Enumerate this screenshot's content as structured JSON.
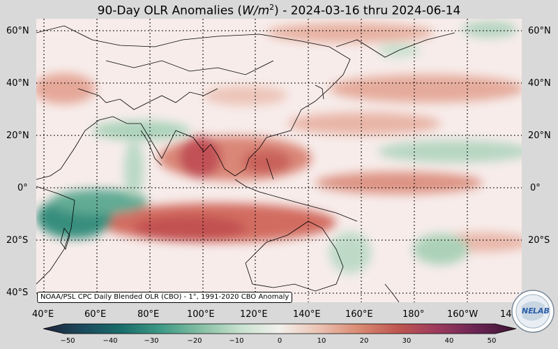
{
  "title": {
    "prefix": "90-Day OLR Anomalies (",
    "units": "W/m",
    "sup": "2",
    "suffix": ") - 2024-03-16 thru 2024-06-14"
  },
  "lat_labels": [
    "60°N",
    "40°N",
    "20°N",
    "0°",
    "20°S",
    "40°S"
  ],
  "lon_labels": [
    "40°E",
    "60°E",
    "80°E",
    "100°E",
    "120°E",
    "140°E",
    "160°E",
    "180°",
    "160°W",
    "14"
  ],
  "credit": "NOAA/PSL CPC Daily Blended OLR (CBO) - 1°, 1991-2020 CBO Anomaly",
  "colorbar": {
    "ticks": [
      "−50",
      "−40",
      "−30",
      "−20",
      "−10",
      "0",
      "10",
      "20",
      "30",
      "40",
      "50"
    ],
    "colors": [
      "#1e2338",
      "#1b4a5c",
      "#1a6e6b",
      "#3f9a86",
      "#86bfa3",
      "#c7e1cf",
      "#f3f0ec",
      "#ebc2b2",
      "#d98b73",
      "#bf5650",
      "#9c3a5e",
      "#6a2453",
      "#3a1530"
    ]
  },
  "logo": {
    "text_ne": "NE",
    "text_lab": "LAB"
  },
  "colors": {
    "background": "#d9d9d9",
    "ocean_base": "#f7ecea",
    "positive": "#d97a66",
    "negative": "#2f8a78"
  }
}
